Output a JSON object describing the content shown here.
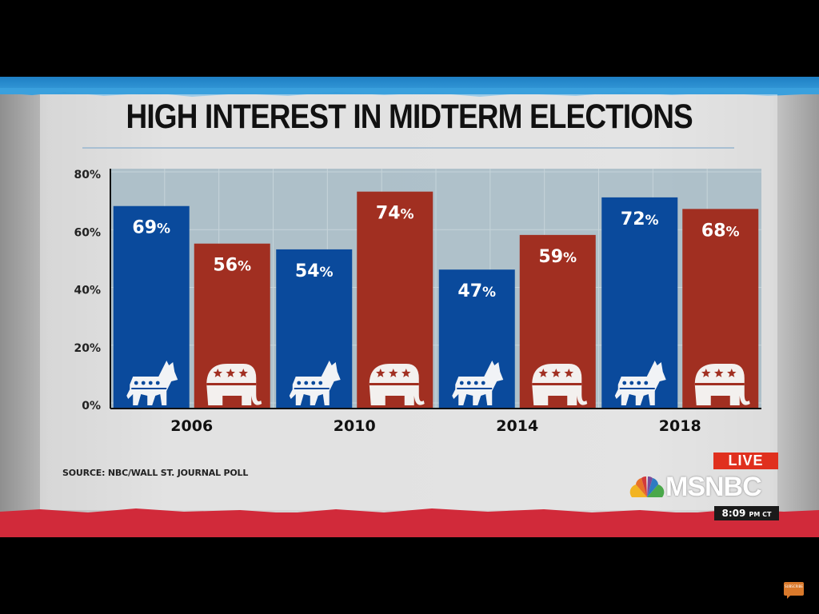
{
  "broadcast": {
    "network": "MSNBC",
    "live_label": "LIVE",
    "time": "8:09",
    "time_suffix": "PM CT",
    "source": "SOURCE: NBC/WALL ST. JOURNAL POLL",
    "corner_badge": "SUBSCRIBE",
    "colors": {
      "democrat": "#0a4a9c",
      "republican": "#a12f21",
      "live": "#e0301e",
      "top_band": "#2a8fd0",
      "bottom_band": "#d12a3a"
    },
    "icons": {
      "democrat": "donkey-icon",
      "republican": "elephant-icon",
      "network": "peacock-icon"
    }
  },
  "chart_data": {
    "type": "bar",
    "title": "HIGH INTEREST IN MIDTERM ELECTIONS",
    "xlabel": "",
    "ylabel": "",
    "categories": [
      "2006",
      "2010",
      "2014",
      "2018"
    ],
    "series": [
      {
        "name": "Democrats",
        "color": "#0a4a9c",
        "icon": "donkey-icon",
        "values": [
          69,
          54,
          47,
          72
        ]
      },
      {
        "name": "Republicans",
        "color": "#a12f21",
        "icon": "elephant-icon",
        "values": [
          56,
          74,
          59,
          68
        ]
      }
    ],
    "value_suffix": "%",
    "ylim": [
      0,
      80
    ],
    "yticks": [
      "0%",
      "20%",
      "40%",
      "60%",
      "80%"
    ],
    "ytick_values": [
      0,
      20,
      40,
      60,
      80
    ],
    "grid": true,
    "legend": "none (party icons at bar bases)"
  }
}
